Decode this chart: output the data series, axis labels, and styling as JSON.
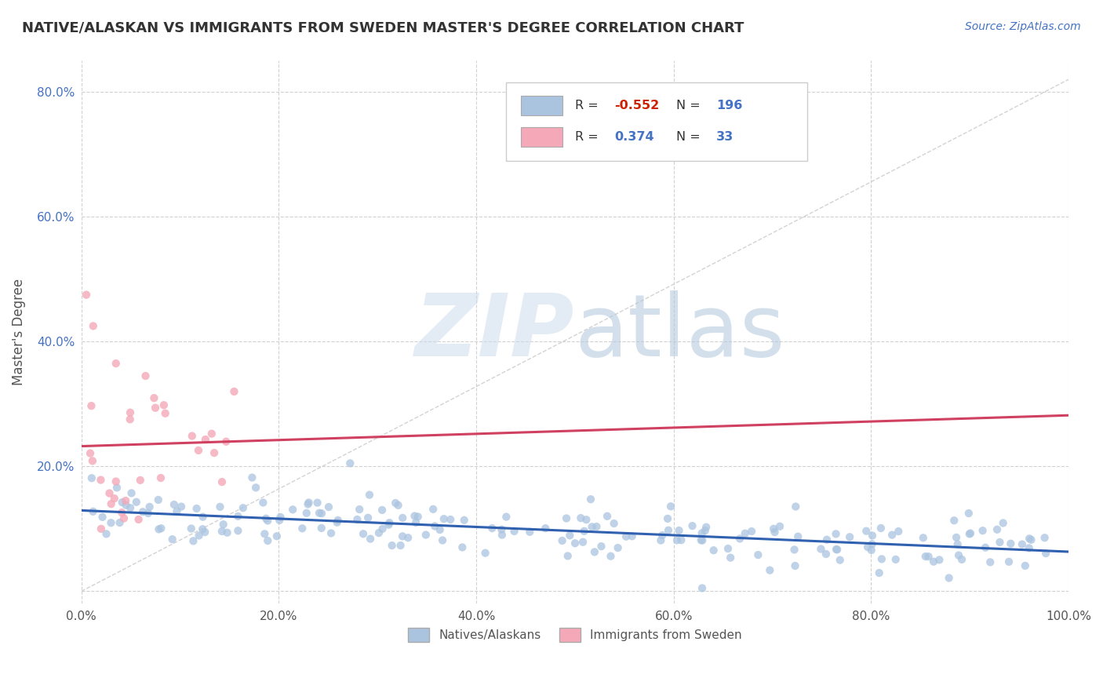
{
  "title": "NATIVE/ALASKAN VS IMMIGRANTS FROM SWEDEN MASTER'S DEGREE CORRELATION CHART",
  "source": "Source: ZipAtlas.com",
  "ylabel": "Master's Degree",
  "blue_R": -0.552,
  "blue_N": 196,
  "pink_R": 0.374,
  "pink_N": 33,
  "blue_color": "#aac4e0",
  "pink_color": "#f4a8b8",
  "blue_line_color": "#3060b0",
  "pink_line_color": "#d04060",
  "legend_label_blue": "Natives/Alaskans",
  "legend_label_pink": "Immigrants from Sweden",
  "xlim": [
    0.0,
    1.0
  ],
  "ylim": [
    -0.02,
    0.85
  ],
  "xticks": [
    0.0,
    0.2,
    0.4,
    0.6,
    0.8,
    1.0
  ],
  "yticks": [
    0.0,
    0.2,
    0.4,
    0.6,
    0.8
  ],
  "xticklabels": [
    "0.0%",
    "20.0%",
    "40.0%",
    "60.0%",
    "80.0%",
    "100.0%"
  ],
  "yticklabels": [
    "",
    "20.0%",
    "40.0%",
    "60.0%",
    "80.0%"
  ],
  "background_color": "#ffffff",
  "grid_color": "#cccccc",
  "title_color": "#333333",
  "source_color": "#4472c4",
  "ylabel_color": "#555555",
  "ytick_color": "#4472c4",
  "xtick_color": "#555555"
}
